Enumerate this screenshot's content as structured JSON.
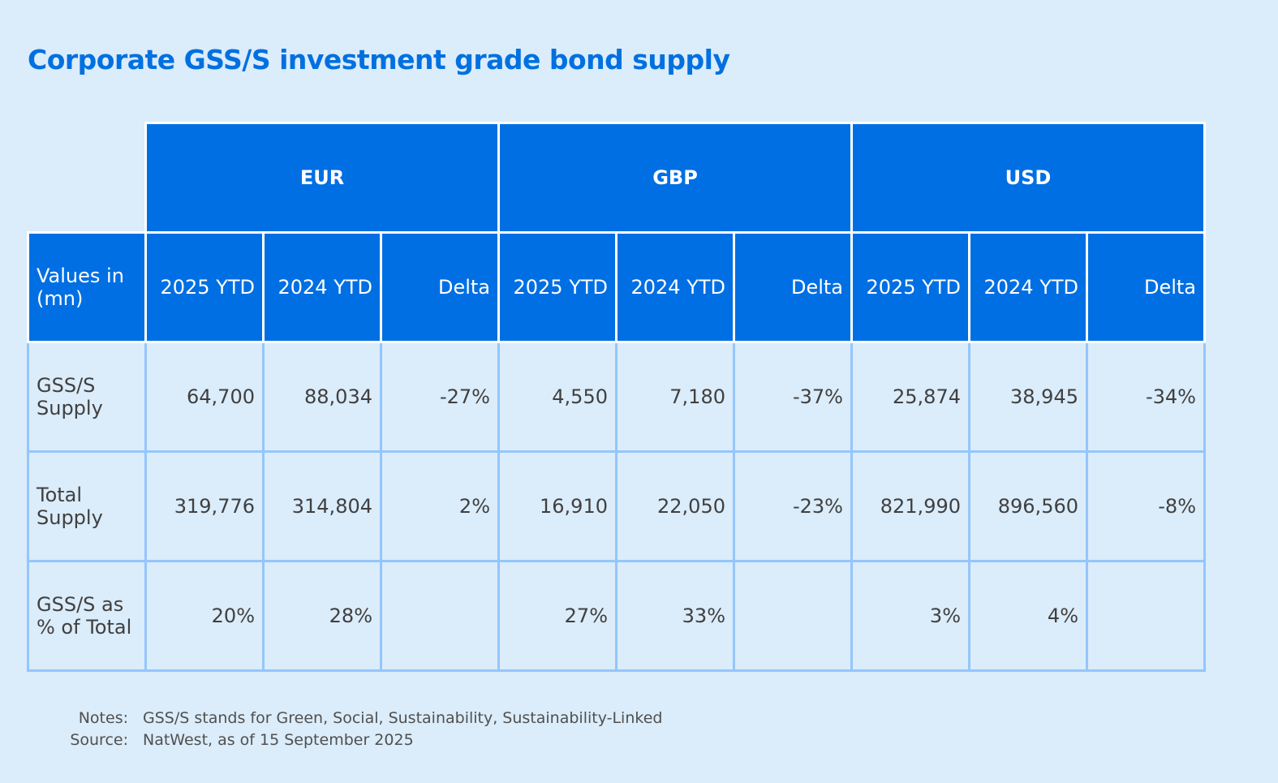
{
  "title": "Corporate GSS/S investment grade bond supply",
  "chart_data": {
    "type": "table",
    "title": "Corporate GSS/S investment grade bond supply",
    "corner_label": "Values in (mn)",
    "currencies": [
      "EUR",
      "GBP",
      "USD"
    ],
    "subcolumns": [
      "2025 YTD",
      "2024 YTD",
      "Delta"
    ],
    "rows": [
      {
        "label": "GSS/S Supply",
        "cells": [
          "64,700",
          "88,034",
          "-27%",
          "4,550",
          "7,180",
          "-37%",
          "25,874",
          "38,945",
          "-34%"
        ]
      },
      {
        "label": "Total Supply",
        "cells": [
          "319,776",
          "314,804",
          "2%",
          "16,910",
          "22,050",
          "-23%",
          "821,990",
          "896,560",
          "-8%"
        ]
      },
      {
        "label": "GSS/S as % of Total",
        "cells": [
          "20%",
          "28%",
          "",
          "27%",
          "33%",
          "",
          "3%",
          "4%",
          ""
        ]
      }
    ]
  },
  "notes": {
    "label": "Notes:",
    "text": "GSS/S stands for Green, Social, Sustainability, Sustainability-Linked"
  },
  "source": {
    "label": "Source:",
    "text": "NatWest, as of 15 September 2025"
  },
  "colors": {
    "header": "#006fe3",
    "background": "#dbecfa",
    "grid": "#94c6fb",
    "title": "#0070e0"
  }
}
